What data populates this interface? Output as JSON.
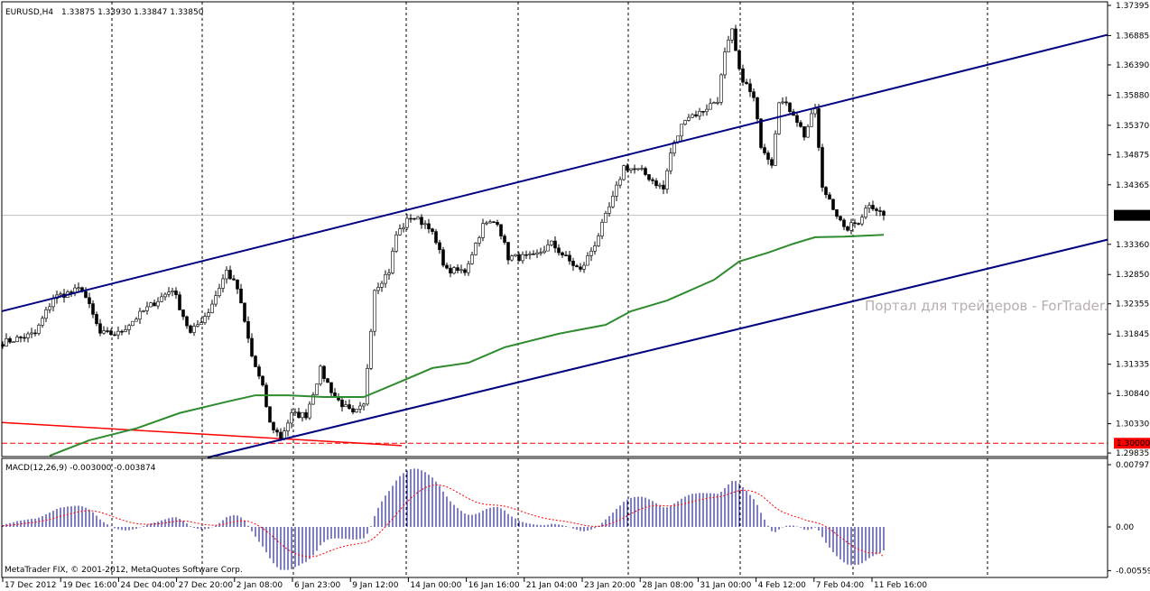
{
  "header": {
    "symbol": "EURUSD,H4",
    "ohlc": "1.33875 1.33930 1.33847 1.33850"
  },
  "macd_label": "MACD(12,26,9) -0.003000 -0.003874",
  "copyright": "MetaTrader FIX, © 2001-2012, MetaQuotes Software Corp.",
  "watermark": "Портал для трейдеров - ForTrader.ru",
  "colors": {
    "background": "#ffffff",
    "grid": "#000000",
    "channel": "#000080",
    "ma": "#2e8b2e",
    "red_line": "#ff0000",
    "macd_hist": "#000080",
    "macd_signal": "#ff0000",
    "current_price_bg": "#000000",
    "level_bg": "#ff0000"
  },
  "price_axis": [
    "1.37395",
    "1.36885",
    "1.36390",
    "1.35880",
    "1.35370",
    "1.34875",
    "1.34365",
    "1.33360",
    "1.32850",
    "1.32355",
    "1.31845",
    "1.31335",
    "1.30840",
    "1.30330",
    "1.29835"
  ],
  "current_price": "1.33850",
  "level_price": "1.30000",
  "macd_axis": [
    "0.007975",
    "0.00",
    "-0.00559"
  ],
  "time_axis": [
    "17 Dec 2012",
    "19 Dec 16:00",
    "24 Dec 04:00",
    "27 Dec 20:00",
    "2 Jan 08:00",
    "6 Jan 23:00",
    "9 Jan 12:00",
    "14 Jan 00:00",
    "16 Jan 16:00",
    "21 Jan 04:00",
    "23 Jan 20:00",
    "28 Jan 08:00",
    "31 Jan 00:00",
    "4 Feb 12:00",
    "7 Feb 04:00",
    "11 Feb 16:00"
  ],
  "chart_data": {
    "type": "candlestick",
    "symbol": "EURUSD",
    "timeframe": "H4",
    "ylim": [
      1.29835,
      1.37395
    ],
    "close_path": [
      [
        0,
        1.317
      ],
      [
        9,
        1.3185
      ],
      [
        14,
        1.3246
      ],
      [
        22,
        1.3261
      ],
      [
        27,
        1.3185
      ],
      [
        32,
        1.3185
      ],
      [
        39,
        1.3223
      ],
      [
        47,
        1.3261
      ],
      [
        52,
        1.3185
      ],
      [
        57,
        1.3223
      ],
      [
        62,
        1.3291
      ],
      [
        65,
        1.3261
      ],
      [
        69,
        1.3147
      ],
      [
        72,
        1.3093
      ],
      [
        74,
        1.3033
      ],
      [
        77,
        1.301
      ],
      [
        80,
        1.3048
      ],
      [
        84,
        1.3048
      ],
      [
        88,
        1.3124
      ],
      [
        92,
        1.3078
      ],
      [
        97,
        1.3048
      ],
      [
        100,
        1.3063
      ],
      [
        103,
        1.3261
      ],
      [
        107,
        1.3291
      ],
      [
        109,
        1.3352
      ],
      [
        113,
        1.3383
      ],
      [
        118,
        1.3368
      ],
      [
        123,
        1.3291
      ],
      [
        128,
        1.3291
      ],
      [
        133,
        1.3368
      ],
      [
        137,
        1.3375
      ],
      [
        140,
        1.3314
      ],
      [
        147,
        1.3314
      ],
      [
        152,
        1.3337
      ],
      [
        157,
        1.3307
      ],
      [
        160,
        1.3291
      ],
      [
        164,
        1.3337
      ],
      [
        169,
        1.3413
      ],
      [
        172,
        1.3467
      ],
      [
        177,
        1.3459
      ],
      [
        183,
        1.3429
      ],
      [
        185,
        1.349
      ],
      [
        189,
        1.3551
      ],
      [
        193,
        1.3558
      ],
      [
        198,
        1.3581
      ],
      [
        200,
        1.3657
      ],
      [
        202,
        1.3695
      ],
      [
        204,
        1.3627
      ],
      [
        208,
        1.3581
      ],
      [
        210,
        1.3505
      ],
      [
        213,
        1.3474
      ],
      [
        215,
        1.3581
      ],
      [
        219,
        1.3558
      ],
      [
        222,
        1.352
      ],
      [
        225,
        1.3566
      ],
      [
        227,
        1.3429
      ],
      [
        229,
        1.3413
      ],
      [
        233,
        1.336
      ],
      [
        237,
        1.3375
      ],
      [
        240,
        1.3406
      ],
      [
        244,
        1.3385
      ]
    ],
    "moving_average": [
      [
        13,
        1.2979
      ],
      [
        24,
        1.3005
      ],
      [
        37,
        1.3025
      ],
      [
        49,
        1.3051
      ],
      [
        62,
        1.307
      ],
      [
        70,
        1.3081
      ],
      [
        79,
        1.3081
      ],
      [
        89,
        1.3078
      ],
      [
        100,
        1.3078
      ],
      [
        109,
        1.3101
      ],
      [
        119,
        1.3127
      ],
      [
        129,
        1.3136
      ],
      [
        139,
        1.3162
      ],
      [
        154,
        1.3185
      ],
      [
        167,
        1.32
      ],
      [
        174,
        1.3223
      ],
      [
        184,
        1.3241
      ],
      [
        197,
        1.3276
      ],
      [
        204,
        1.3307
      ],
      [
        212,
        1.3322
      ],
      [
        219,
        1.3337
      ],
      [
        225,
        1.3348
      ],
      [
        233,
        1.3349
      ],
      [
        244,
        1.3352
      ]
    ],
    "channel_upper": [
      [
        -0.25,
        1.3223
      ],
      [
        306.75,
        1.3691
      ]
    ],
    "channel_lower": [
      [
        56.75,
        1.2976
      ],
      [
        306.75,
        1.3345
      ]
    ],
    "red_trendline": [
      [
        -0.25,
        1.3035
      ],
      [
        110.5,
        1.2996
      ]
    ],
    "horizontal_level": 1.3,
    "macd": {
      "fast": 12,
      "slow": 26,
      "signal": 9,
      "main": -0.003,
      "signal_value": -0.003874,
      "ylim": [
        -0.00559,
        0.007975
      ]
    }
  }
}
